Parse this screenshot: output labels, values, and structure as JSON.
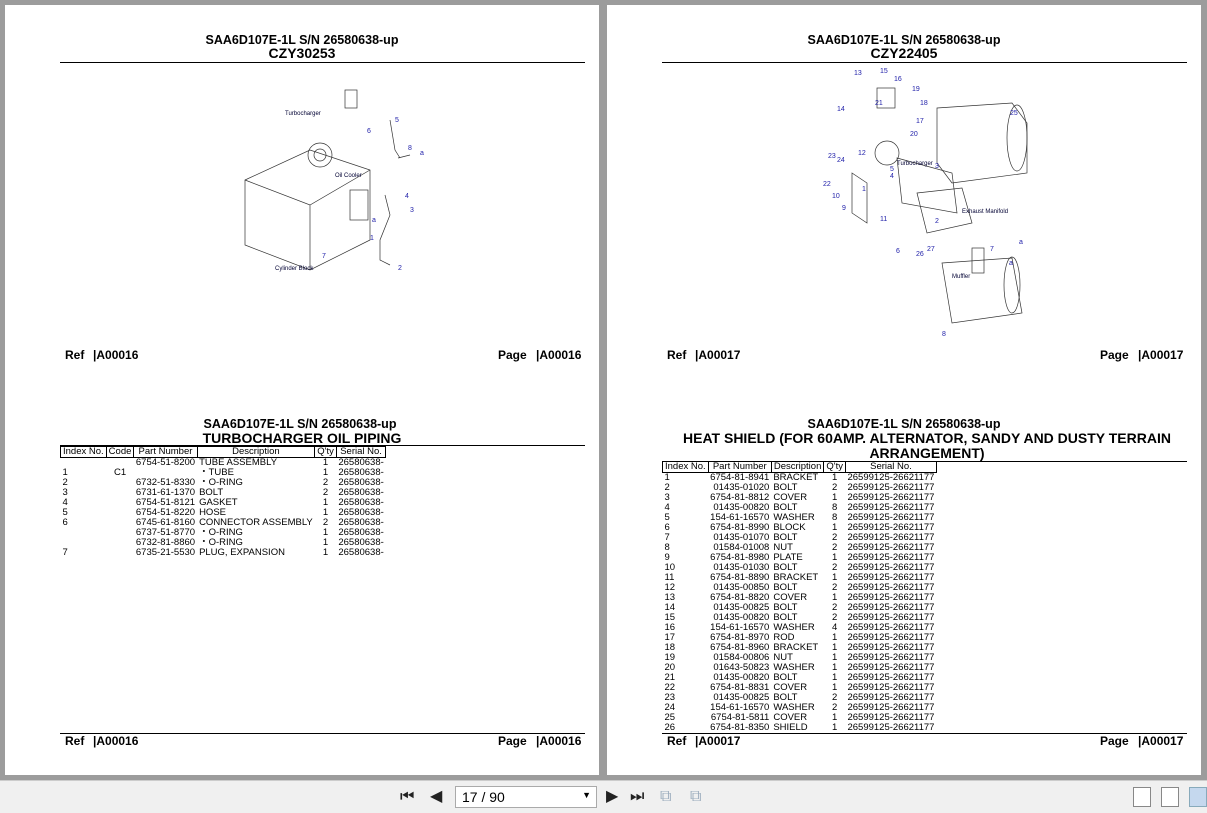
{
  "left_page": {
    "top": {
      "model": "SAA6D107E-1L S/N 26580638-up",
      "drawing_no": "CZY30253",
      "labels": {
        "turbocharger": "Turbocharger",
        "oil_cooler": "Oil Cooler",
        "cylinder_block": "Cylinder Block",
        "callouts": [
          "1",
          "2",
          "3",
          "4",
          "5",
          "6",
          "7",
          "8",
          "a",
          "a"
        ]
      },
      "ref_label": "Ref",
      "ref_value": "|A00016",
      "page_label": "Page",
      "page_value": "|A00016"
    },
    "bottom": {
      "model": "SAA6D107E-1L S/N 26580638-up",
      "title": "TURBOCHARGER OIL PIPING",
      "columns": [
        "Index No.",
        "Code",
        "Part Number",
        "Description",
        "Q'ty",
        "Serial No."
      ],
      "rows": [
        [
          "",
          "",
          "6754-51-8200",
          "TUBE ASSEMBLY",
          "1",
          "26580638-"
        ],
        [
          "1",
          "C1",
          "",
          "・TUBE",
          "1",
          "26580638-"
        ],
        [
          "2",
          "",
          "6732-51-8330",
          "・O-RING",
          "2",
          "26580638-"
        ],
        [
          "3",
          "",
          "6731-61-1370",
          "BOLT",
          "2",
          "26580638-"
        ],
        [
          "4",
          "",
          "6754-51-8121",
          "GASKET",
          "1",
          "26580638-"
        ],
        [
          "5",
          "",
          "6754-51-8220",
          "HOSE",
          "1",
          "26580638-"
        ],
        [
          "6",
          "",
          "6745-61-8160",
          "CONNECTOR ASSEMBLY",
          "2",
          "26580638-"
        ],
        [
          "",
          "",
          "6737-51-8770",
          "・O-RING",
          "1",
          "26580638-"
        ],
        [
          "",
          "",
          "6732-81-8860",
          "・O-RING",
          "1",
          "26580638-"
        ],
        [
          "7",
          "",
          "6735-21-5530",
          "PLUG, EXPANSION",
          "1",
          "26580638-"
        ]
      ],
      "ref_label": "Ref",
      "ref_value": "|A00016",
      "page_label": "Page",
      "page_value": "|A00016"
    }
  },
  "right_page": {
    "top": {
      "model": "SAA6D107E-1L S/N 26580638-up",
      "drawing_no": "CZY22405",
      "labels": {
        "turbocharger": "Turbocharger",
        "exhaust_manifold": "Exhaust Manifold",
        "muffler": "Muffler",
        "callouts": [
          "1",
          "2",
          "3",
          "4",
          "5",
          "6",
          "7",
          "8",
          "9",
          "10",
          "11",
          "12",
          "13",
          "14",
          "15",
          "16",
          "17",
          "18",
          "19",
          "20",
          "21",
          "22",
          "23",
          "24",
          "25",
          "26",
          "27",
          "a",
          "a"
        ]
      },
      "ref_label": "Ref",
      "ref_value": "|A00017",
      "page_label": "Page",
      "page_value": "|A00017"
    },
    "bottom": {
      "model": "SAA6D107E-1L S/N 26580638-up",
      "title": "HEAT SHIELD (FOR 60AMP. ALTERNATOR, SANDY AND DUSTY TERRAIN ARRANGEMENT)",
      "columns": [
        "Index No.",
        "Part Number",
        "Description",
        "Q'ty",
        "Serial No."
      ],
      "rows": [
        [
          "1",
          "6754-81-8941",
          "BRACKET",
          "1",
          "26599125-26621177"
        ],
        [
          "2",
          "01435-01020",
          "BOLT",
          "2",
          "26599125-26621177"
        ],
        [
          "3",
          "6754-81-8812",
          "COVER",
          "1",
          "26599125-26621177"
        ],
        [
          "4",
          "01435-00820",
          "BOLT",
          "8",
          "26599125-26621177"
        ],
        [
          "5",
          "154-61-16570",
          "WASHER",
          "8",
          "26599125-26621177"
        ],
        [
          "6",
          "6754-81-8990",
          "BLOCK",
          "1",
          "26599125-26621177"
        ],
        [
          "7",
          "01435-01070",
          "BOLT",
          "2",
          "26599125-26621177"
        ],
        [
          "8",
          "01584-01008",
          "NUT",
          "2",
          "26599125-26621177"
        ],
        [
          "9",
          "6754-81-8980",
          "PLATE",
          "1",
          "26599125-26621177"
        ],
        [
          "10",
          "01435-01030",
          "BOLT",
          "2",
          "26599125-26621177"
        ],
        [
          "11",
          "6754-81-8890",
          "BRACKET",
          "1",
          "26599125-26621177"
        ],
        [
          "12",
          "01435-00850",
          "BOLT",
          "2",
          "26599125-26621177"
        ],
        [
          "13",
          "6754-81-8820",
          "COVER",
          "1",
          "26599125-26621177"
        ],
        [
          "14",
          "01435-00825",
          "BOLT",
          "2",
          "26599125-26621177"
        ],
        [
          "15",
          "01435-00820",
          "BOLT",
          "2",
          "26599125-26621177"
        ],
        [
          "16",
          "154-61-16570",
          "WASHER",
          "4",
          "26599125-26621177"
        ],
        [
          "17",
          "6754-81-8970",
          "ROD",
          "1",
          "26599125-26621177"
        ],
        [
          "18",
          "6754-81-8960",
          "BRACKET",
          "1",
          "26599125-26621177"
        ],
        [
          "19",
          "01584-00806",
          "NUT",
          "1",
          "26599125-26621177"
        ],
        [
          "20",
          "01643-50823",
          "WASHER",
          "1",
          "26599125-26621177"
        ],
        [
          "21",
          "01435-00820",
          "BOLT",
          "1",
          "26599125-26621177"
        ],
        [
          "22",
          "6754-81-8831",
          "COVER",
          "1",
          "26599125-26621177"
        ],
        [
          "23",
          "01435-00825",
          "BOLT",
          "2",
          "26599125-26621177"
        ],
        [
          "24",
          "154-61-16570",
          "WASHER",
          "2",
          "26599125-26621177"
        ],
        [
          "25",
          "6754-81-5811",
          "COVER",
          "1",
          "26599125-26621177"
        ],
        [
          "26",
          "6754-81-8350",
          "SHIELD",
          "1",
          "26599125-26621177"
        ]
      ],
      "ref_label": "Ref",
      "ref_value": "|A00017",
      "page_label": "Page",
      "page_value": "|A00017"
    }
  },
  "toolbar": {
    "page_field": "17 / 90",
    "current_page": 17,
    "total_pages": 90,
    "active_view": "two-page"
  }
}
